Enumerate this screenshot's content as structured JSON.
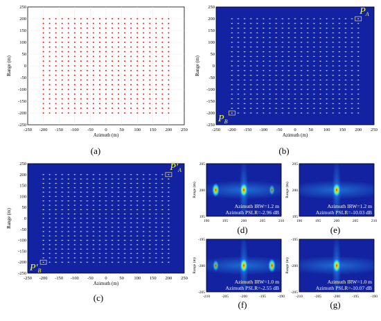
{
  "colors": {
    "scatter_point": "#ff2020",
    "sar_background": "#1222a0",
    "sar_point": "#e6f0ff",
    "box": "#ffe680",
    "annotation_text": "#ffff33",
    "frame": "#000000"
  },
  "panels": [
    {
      "id": "a",
      "caption": "(a)",
      "type": "scatter",
      "xlabel": "Azimuth (m)",
      "ylabel": "Range (m)",
      "xlim": [
        -250,
        250
      ],
      "ylim": [
        -250,
        250
      ],
      "xticks": [
        "-250",
        "-200",
        "-150",
        "-100",
        "-50",
        "0",
        "50",
        "100",
        "150",
        "200",
        "250"
      ],
      "yticks": [
        "250",
        "200",
        "150",
        "100",
        "50",
        "0",
        "-50",
        "-100",
        "-150",
        "-200",
        "-250"
      ],
      "grid_points": {
        "start": -200,
        "end": 200,
        "step": 20
      }
    },
    {
      "id": "b",
      "caption": "(b)",
      "type": "sar-image",
      "xlabel": "Azimuth (m)",
      "ylabel": "Range (m)",
      "xlim": [
        -250,
        250
      ],
      "ylim": [
        -250,
        250
      ],
      "xticks": [
        "-250",
        "-200",
        "-150",
        "-100",
        "-50",
        "0",
        "50",
        "100",
        "150",
        "200",
        "250"
      ],
      "yticks": [
        "250",
        "200",
        "150",
        "100",
        "50",
        "0",
        "-50",
        "-100",
        "-150",
        "-200",
        "-250"
      ],
      "grid_points": {
        "start": -200,
        "end": 200,
        "step": 20
      },
      "label_a": {
        "main": "P",
        "sub": "A"
      },
      "label_b": {
        "main": "P",
        "sub": "B"
      }
    },
    {
      "id": "c",
      "caption": "(c)",
      "type": "sar-image",
      "xlabel": "Azimuth (m)",
      "ylabel": "Range (m)",
      "xlim": [
        -250,
        250
      ],
      "ylim": [
        -250,
        250
      ],
      "xticks": [
        "-250",
        "-200",
        "-150",
        "-100",
        "-50",
        "0",
        "50",
        "100",
        "150",
        "200",
        "250"
      ],
      "yticks": [
        "250",
        "200",
        "150",
        "100",
        "50",
        "0",
        "-50",
        "-100",
        "-150",
        "-200",
        "-250"
      ],
      "grid_points": {
        "start": -200,
        "end": 200,
        "step": 20
      },
      "label_a": {
        "main": "P'",
        "sub": "A"
      },
      "label_b": {
        "main": "P'",
        "sub": "B"
      }
    },
    {
      "id": "d",
      "caption": "(d)",
      "type": "zoom",
      "ylabel": "Range (m)",
      "xlim": [
        190,
        210
      ],
      "ylim": [
        195,
        205
      ],
      "xticks": [
        "190",
        "195",
        "200",
        "205",
        "210"
      ],
      "yticks": [
        "205",
        "200",
        "195"
      ],
      "irw": "Azimuth IRW=1.2 m",
      "pslr": "Azimuth PSLR=-2.96 dB",
      "blobs": [
        {
          "x": 200,
          "y": 200,
          "amp": 1.0
        },
        {
          "x": 192.5,
          "y": 200,
          "amp": 0.85
        },
        {
          "x": 207.5,
          "y": 200,
          "amp": 0.35
        }
      ]
    },
    {
      "id": "e",
      "caption": "(e)",
      "type": "zoom",
      "ylabel": "Range (m)",
      "xlim": [
        190,
        210
      ],
      "ylim": [
        195,
        205
      ],
      "xticks": [
        "190",
        "195",
        "200",
        "205",
        "210"
      ],
      "yticks": [
        "205",
        "200",
        "195"
      ],
      "irw": "Azimuth IRW=1.2 m",
      "pslr": "Azimuth PSLR=-10.03 dB",
      "blobs": [
        {
          "x": 200,
          "y": 200,
          "amp": 1.0
        }
      ]
    },
    {
      "id": "f",
      "caption": "(f)",
      "type": "zoom",
      "ylabel": "Range (m)",
      "xlim": [
        -210,
        -190
      ],
      "ylim": [
        -205,
        -195
      ],
      "xticks": [
        "-210",
        "-205",
        "-200",
        "-195",
        "-190"
      ],
      "yticks": [
        "-195",
        "-200",
        "-205"
      ],
      "irw": "Azimuth IRW=1.0 m",
      "pslr": "Azimuth PSLR=-2.55 dB",
      "blobs": [
        {
          "x": -200,
          "y": -200,
          "amp": 1.0
        },
        {
          "x": -207.5,
          "y": -200,
          "amp": 0.45
        },
        {
          "x": -192.5,
          "y": -200,
          "amp": 0.85
        }
      ]
    },
    {
      "id": "g",
      "caption": "(g)",
      "type": "zoom",
      "ylabel": "Range (m)",
      "xlim": [
        -210,
        -190
      ],
      "ylim": [
        -205,
        -195
      ],
      "xticks": [
        "-210",
        "-205",
        "-200",
        "-195",
        "-190"
      ],
      "yticks": [
        "-195",
        "-200",
        "-205"
      ],
      "irw": "Azimuth IRW=1.0 m",
      "pslr": "Azimuth PSLR=-10.07 dB",
      "blobs": [
        {
          "x": -200,
          "y": -200,
          "amp": 1.0
        }
      ]
    }
  ]
}
